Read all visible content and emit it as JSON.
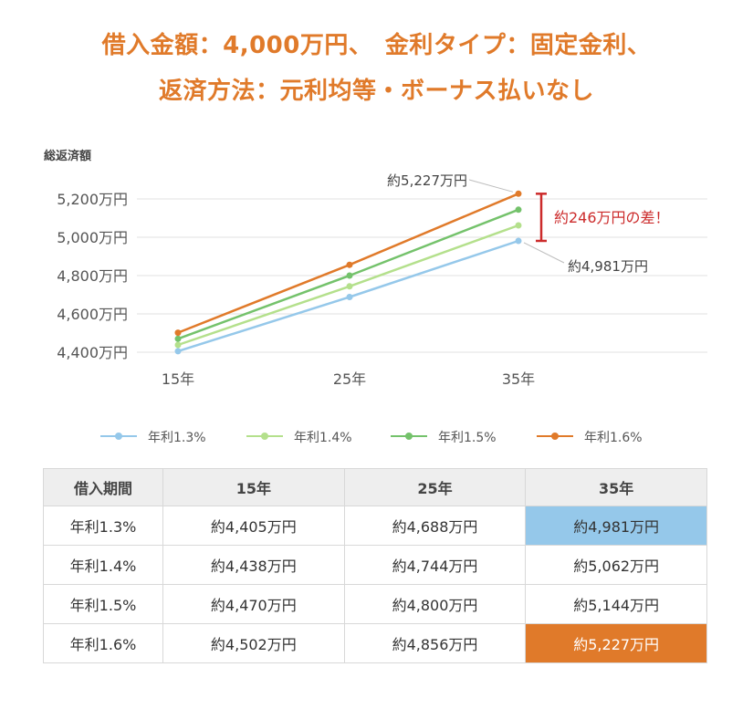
{
  "header": {
    "line1": "借入金額：4,000万円、　金利タイプ：固定金利、",
    "line2": "返済方法：元利均等・ボーナス払いなし"
  },
  "chart_data": {
    "type": "line",
    "ylabel": "総返済額",
    "categories": [
      "15年",
      "25年",
      "35年"
    ],
    "yticks": [
      "4,400万円",
      "4,600万円",
      "4,800万円",
      "5,000万円",
      "5,200万円"
    ],
    "ytick_values": [
      4400,
      4600,
      4800,
      5000,
      5200
    ],
    "ylim": [
      4400,
      5200
    ],
    "grid": true,
    "legend_position": "bottom",
    "series": [
      {
        "name": "年利1.3%",
        "values": [
          4405,
          4688,
          4981
        ],
        "color": "#95c8ea"
      },
      {
        "name": "年利1.4%",
        "values": [
          4438,
          4744,
          5062
        ],
        "color": "#b4e08c"
      },
      {
        "name": "年利1.5%",
        "values": [
          4470,
          4800,
          5144
        ],
        "color": "#74c26b"
      },
      {
        "name": "年利1.6%",
        "values": [
          4502,
          4856,
          5227
        ],
        "color": "#e07a2a"
      }
    ],
    "annotations": {
      "top_label": "約5,227万円",
      "bottom_label": "約4,981万円",
      "diff_label": "約246万円の差！",
      "diff_color": "#cc2b2b"
    }
  },
  "table": {
    "headers": [
      "借入期間",
      "15年",
      "25年",
      "35年"
    ],
    "rows": [
      [
        "年利1.3%",
        "約4,405万円",
        "約4,688万円",
        "約4,981万円"
      ],
      [
        "年利1.4%",
        "約4,438万円",
        "約4,744万円",
        "約5,062万円"
      ],
      [
        "年利1.5%",
        "約4,470万円",
        "約4,800万円",
        "約5,144万円"
      ],
      [
        "年利1.6%",
        "約4,502万円",
        "約4,856万円",
        "約5,227万円"
      ]
    ],
    "highlight_colors": {
      "min": "#95c8ea",
      "max": "#e07a2a"
    }
  }
}
